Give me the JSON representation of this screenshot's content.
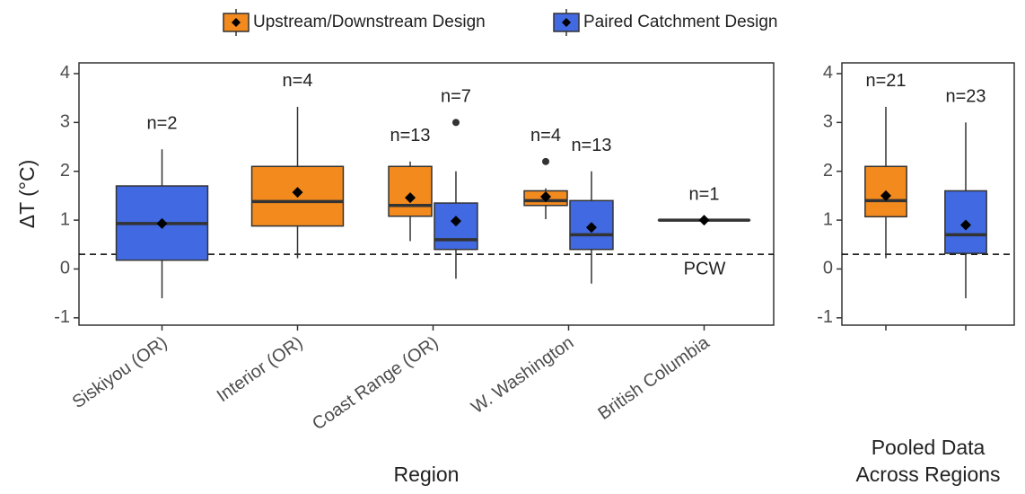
{
  "chart_data": [
    {
      "type": "box",
      "y_label": "ΔT (°C)",
      "x_label": "Region",
      "categories": [
        "Siskiyou (OR)",
        "Interior (OR)",
        "Coast Range (OR)",
        "W. Washington",
        "British Columbia"
      ],
      "ylim": [
        -1.15,
        4.22
      ],
      "yticks": [
        -1,
        0,
        1,
        2,
        3,
        4
      ],
      "reference_line": {
        "value": 0.3,
        "label": "PCW"
      },
      "series": [
        {
          "name": "Upstream/Downstream Design",
          "color": "#f28a1e",
          "boxes": [
            null,
            {
              "min": 0.22,
              "q1": 0.88,
              "median": 1.38,
              "q3": 2.1,
              "max": 3.32,
              "mean": 1.57,
              "outliers": [],
              "label": "n=4"
            },
            {
              "min": 0.57,
              "q1": 1.08,
              "median": 1.3,
              "q3": 2.1,
              "max": 2.2,
              "mean": 1.46,
              "outliers": [],
              "label": "n=13"
            },
            {
              "min": 1.02,
              "q1": 1.3,
              "median": 1.4,
              "q3": 1.6,
              "max": 1.65,
              "mean": 1.48,
              "outliers": [
                2.2
              ],
              "label": "n=4"
            },
            null
          ]
        },
        {
          "name": "Paired Catchment Design",
          "color": "#4169e1",
          "boxes": [
            {
              "min": -0.6,
              "q1": 0.18,
              "median": 0.93,
              "q3": 1.7,
              "max": 2.45,
              "mean": 0.93,
              "outliers": [],
              "label": "n=2"
            },
            null,
            {
              "min": -0.2,
              "q1": 0.4,
              "median": 0.6,
              "q3": 1.35,
              "max": 2.0,
              "mean": 0.98,
              "outliers": [
                3.0
              ],
              "label": "n=7"
            },
            {
              "min": -0.3,
              "q1": 0.4,
              "median": 0.7,
              "q3": 1.4,
              "max": 2.0,
              "mean": 0.85,
              "outliers": [],
              "label": "n=13"
            },
            {
              "min": 1.0,
              "q1": 1.0,
              "median": 1.0,
              "q3": 1.0,
              "max": 1.0,
              "mean": 1.0,
              "outliers": [],
              "label": "n=1"
            }
          ]
        }
      ]
    },
    {
      "type": "box",
      "x_label": [
        "Pooled Data",
        "Across Regions"
      ],
      "categories": [
        null,
        null
      ],
      "ylim": [
        -1.15,
        4.22
      ],
      "yticks": [
        -1,
        0,
        1,
        2,
        3,
        4
      ],
      "reference_line": {
        "value": 0.3
      },
      "series": [
        {
          "name": "Upstream/Downstream Design",
          "color": "#f28a1e",
          "boxes": [
            {
              "min": 0.22,
              "q1": 1.07,
              "median": 1.4,
              "q3": 2.1,
              "max": 3.32,
              "mean": 1.5,
              "outliers": [],
              "label": "n=21"
            },
            null
          ]
        },
        {
          "name": "Paired Catchment Design",
          "color": "#4169e1",
          "boxes": [
            null,
            {
              "min": -0.6,
              "q1": 0.32,
              "median": 0.7,
              "q3": 1.6,
              "max": 3.0,
              "mean": 0.9,
              "outliers": [],
              "label": "n=23"
            }
          ]
        }
      ]
    }
  ]
}
